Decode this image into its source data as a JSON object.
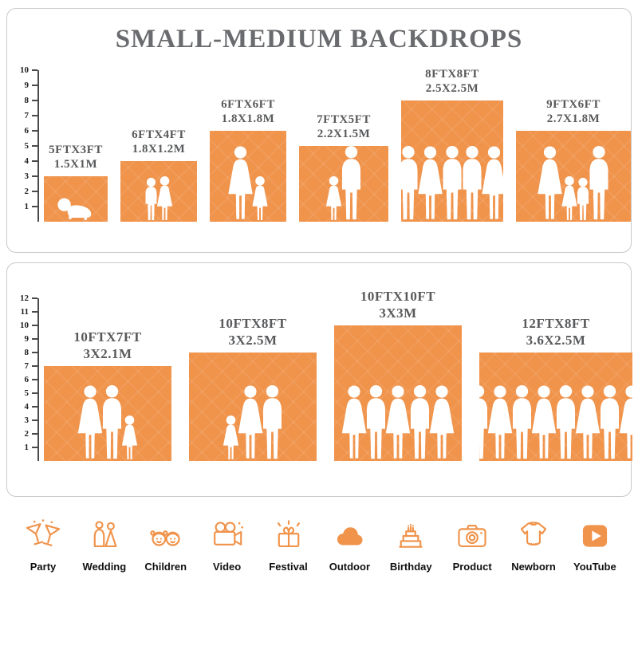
{
  "title": "SMALL-MEDIUM BACKDROPS",
  "colors": {
    "accent": "#F0934B",
    "title_gray": "#6A6B6E",
    "label_gray": "#58595B"
  },
  "panels": [
    {
      "name": "small-medium-top",
      "ruler": {
        "min": 1,
        "max": 10
      },
      "backdrops": [
        {
          "size_ft": "5FTX3FT",
          "size_m": "1.5X1M",
          "width_ft": 5,
          "height_ft": 3,
          "figures": [
            "baby"
          ]
        },
        {
          "size_ft": "6FTX4FT",
          "size_m": "1.8X1.2M",
          "width_ft": 6,
          "height_ft": 4,
          "figures": [
            "child",
            "child-f"
          ]
        },
        {
          "size_ft": "6FTX6FT",
          "size_m": "1.8X1.8M",
          "width_ft": 6,
          "height_ft": 6,
          "figures": [
            "adult-f",
            "child-f"
          ]
        },
        {
          "size_ft": "7FTX5FT",
          "size_m": "2.2X1.5M",
          "width_ft": 7,
          "height_ft": 5,
          "figures": [
            "child-f",
            "adult"
          ]
        },
        {
          "size_ft": "8FTX8FT",
          "size_m": "2.5X2.5M",
          "width_ft": 8,
          "height_ft": 8,
          "figures": [
            "adult",
            "adult-f",
            "adult",
            "adult",
            "adult-f"
          ]
        },
        {
          "size_ft": "9FTX6FT",
          "size_m": "2.7X1.8M",
          "width_ft": 9,
          "height_ft": 6,
          "figures": [
            "adult-f",
            "child-f",
            "child",
            "adult"
          ]
        }
      ]
    },
    {
      "name": "small-medium-bottom",
      "ruler": {
        "min": 1,
        "max": 12
      },
      "backdrops": [
        {
          "size_ft": "10FTX7FT",
          "size_m": "3X2.1M",
          "width_ft": 10,
          "height_ft": 7,
          "figures": [
            "adult-f",
            "adult",
            "child-f"
          ]
        },
        {
          "size_ft": "10FTX8FT",
          "size_m": "3X2.5M",
          "width_ft": 10,
          "height_ft": 8,
          "figures": [
            "child-f",
            "adult-f",
            "adult"
          ]
        },
        {
          "size_ft": "10FTX10FT",
          "size_m": "3X3M",
          "width_ft": 10,
          "height_ft": 10,
          "figures": [
            "adult-f",
            "adult",
            "adult-f",
            "adult",
            "adult-f"
          ]
        },
        {
          "size_ft": "12FTX8FT",
          "size_m": "3.6X2.5M",
          "width_ft": 12,
          "height_ft": 8,
          "figures": [
            "adult",
            "adult-f",
            "adult",
            "adult-f",
            "adult",
            "adult-f",
            "adult",
            "adult-f"
          ]
        }
      ]
    }
  ],
  "categories": [
    {
      "label": "Party",
      "icon": "party-icon"
    },
    {
      "label": "Wedding",
      "icon": "wedding-icon"
    },
    {
      "label": "Children",
      "icon": "children-icon"
    },
    {
      "label": "Video",
      "icon": "video-icon"
    },
    {
      "label": "Festival",
      "icon": "festival-icon"
    },
    {
      "label": "Outdoor",
      "icon": "outdoor-icon"
    },
    {
      "label": "Birthday",
      "icon": "birthday-icon"
    },
    {
      "label": "Product",
      "icon": "product-icon"
    },
    {
      "label": "Newborn",
      "icon": "newborn-icon"
    },
    {
      "label": "YouTube",
      "icon": "youtube-icon"
    }
  ]
}
